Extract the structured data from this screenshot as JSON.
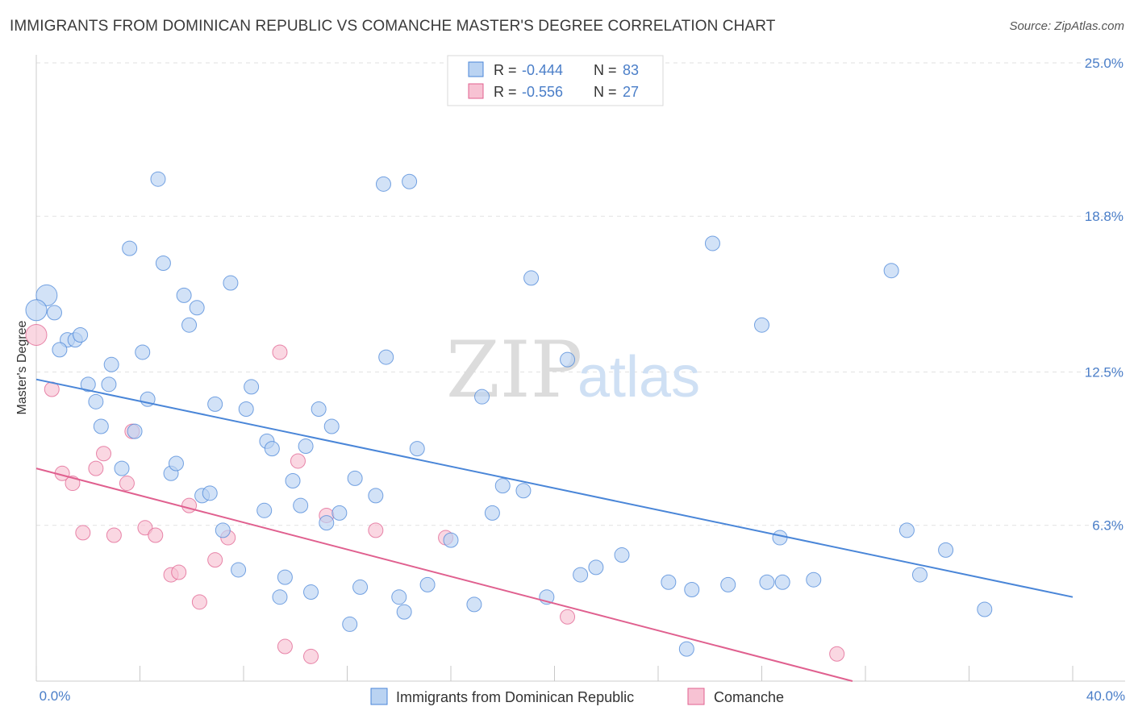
{
  "title": "IMMIGRANTS FROM DOMINICAN REPUBLIC VS COMANCHE MASTER'S DEGREE CORRELATION CHART",
  "source": "Source: ZipAtlas.com",
  "watermark": {
    "part1": "ZIP",
    "part2": "atlas"
  },
  "colors": {
    "blue": "#4a86d8",
    "blue_fill": "#bad3f2",
    "pink": "#e0608f",
    "pink_fill": "#f7c2d3",
    "tick_text": "#4a7ec8"
  },
  "legend_box": {
    "rows": [
      {
        "r_label": "R = ",
        "r_value": "-0.444",
        "n_label": "N = ",
        "n_value": "83"
      },
      {
        "r_label": "R = ",
        "r_value": "-0.556",
        "n_label": "N = ",
        "n_value": "27"
      }
    ]
  },
  "chart_data": {
    "type": "scatter",
    "title": "IMMIGRANTS FROM DOMINICAN REPUBLIC VS COMANCHE MASTER'S DEGREE CORRELATION CHART",
    "xlabel": "",
    "ylabel": "Master's Degree",
    "xlim": [
      0,
      40
    ],
    "ylim": [
      0,
      25
    ],
    "x_tick_labels": [
      "0.0%",
      "40.0%"
    ],
    "y_ticks": [
      6.3,
      12.5,
      18.8,
      25.0
    ],
    "y_tick_labels": [
      "6.3%",
      "12.5%",
      "18.8%",
      "25.0%"
    ],
    "grid": "horizontal dashed",
    "legend_position": "bottom",
    "series": [
      {
        "name": "Immigrants from Dominican Republic",
        "color": "#4a86d8",
        "r": -0.444,
        "n": 83,
        "trend": {
          "x": [
            0,
            40
          ],
          "y": [
            12.2,
            3.4
          ]
        },
        "points": [
          [
            0.4,
            15.6
          ],
          [
            0.7,
            14.9
          ],
          [
            0.0,
            15.0
          ],
          [
            1.2,
            13.8
          ],
          [
            1.5,
            13.8
          ],
          [
            0.9,
            13.4
          ],
          [
            1.7,
            14.0
          ],
          [
            2.0,
            12.0
          ],
          [
            2.3,
            11.3
          ],
          [
            2.9,
            12.8
          ],
          [
            2.8,
            12.0
          ],
          [
            2.5,
            10.3
          ],
          [
            3.6,
            17.5
          ],
          [
            4.1,
            13.3
          ],
          [
            3.8,
            10.1
          ],
          [
            4.3,
            11.4
          ],
          [
            4.7,
            20.3
          ],
          [
            4.9,
            16.9
          ],
          [
            5.7,
            15.6
          ],
          [
            5.9,
            14.4
          ],
          [
            6.2,
            15.1
          ],
          [
            3.3,
            8.6
          ],
          [
            5.2,
            8.4
          ],
          [
            5.4,
            8.8
          ],
          [
            6.4,
            7.5
          ],
          [
            6.7,
            7.6
          ],
          [
            6.9,
            11.2
          ],
          [
            7.5,
            16.1
          ],
          [
            7.2,
            6.1
          ],
          [
            7.8,
            4.5
          ],
          [
            8.1,
            11.0
          ],
          [
            8.3,
            11.9
          ],
          [
            8.8,
            6.9
          ],
          [
            8.9,
            9.7
          ],
          [
            9.1,
            9.4
          ],
          [
            9.4,
            3.4
          ],
          [
            9.6,
            4.2
          ],
          [
            9.9,
            8.1
          ],
          [
            10.2,
            7.1
          ],
          [
            10.4,
            9.5
          ],
          [
            10.6,
            3.6
          ],
          [
            10.9,
            11.0
          ],
          [
            11.4,
            10.3
          ],
          [
            11.2,
            6.4
          ],
          [
            11.7,
            6.8
          ],
          [
            12.1,
            2.3
          ],
          [
            12.3,
            8.2
          ],
          [
            12.5,
            3.8
          ],
          [
            13.1,
            7.5
          ],
          [
            13.4,
            20.1
          ],
          [
            13.5,
            13.1
          ],
          [
            14.4,
            20.2
          ],
          [
            14.0,
            3.4
          ],
          [
            14.2,
            2.8
          ],
          [
            14.7,
            9.4
          ],
          [
            15.1,
            3.9
          ],
          [
            16.0,
            5.7
          ],
          [
            16.9,
            3.1
          ],
          [
            17.2,
            11.5
          ],
          [
            17.6,
            6.8
          ],
          [
            18.0,
            7.9
          ],
          [
            18.8,
            7.7
          ],
          [
            19.1,
            16.3
          ],
          [
            19.7,
            3.4
          ],
          [
            20.5,
            13.0
          ],
          [
            21.0,
            4.3
          ],
          [
            21.6,
            4.6
          ],
          [
            22.6,
            5.1
          ],
          [
            24.4,
            4.0
          ],
          [
            25.1,
            1.3
          ],
          [
            25.3,
            3.7
          ],
          [
            26.1,
            17.7
          ],
          [
            26.7,
            3.9
          ],
          [
            28.0,
            14.4
          ],
          [
            28.2,
            4.0
          ],
          [
            28.7,
            5.8
          ],
          [
            28.8,
            4.0
          ],
          [
            30.0,
            4.1
          ],
          [
            33.0,
            16.6
          ],
          [
            33.6,
            6.1
          ],
          [
            34.1,
            4.3
          ],
          [
            35.1,
            5.3
          ],
          [
            36.6,
            2.9
          ]
        ]
      },
      {
        "name": "Comanche",
        "color": "#e0608f",
        "r": -0.556,
        "n": 27,
        "trend": {
          "x": [
            0,
            31.5
          ],
          "y": [
            8.6,
            0.0
          ]
        },
        "points": [
          [
            0.0,
            14.0
          ],
          [
            0.6,
            11.8
          ],
          [
            1.0,
            8.4
          ],
          [
            1.4,
            8.0
          ],
          [
            1.8,
            6.0
          ],
          [
            2.3,
            8.6
          ],
          [
            2.6,
            9.2
          ],
          [
            3.0,
            5.9
          ],
          [
            3.5,
            8.0
          ],
          [
            3.7,
            10.1
          ],
          [
            4.2,
            6.2
          ],
          [
            4.6,
            5.9
          ],
          [
            5.2,
            4.3
          ],
          [
            5.5,
            4.4
          ],
          [
            5.9,
            7.1
          ],
          [
            6.3,
            3.2
          ],
          [
            6.9,
            4.9
          ],
          [
            7.4,
            5.8
          ],
          [
            9.4,
            13.3
          ],
          [
            9.6,
            1.4
          ],
          [
            10.1,
            8.9
          ],
          [
            10.6,
            1.0
          ],
          [
            11.2,
            6.7
          ],
          [
            13.1,
            6.1
          ],
          [
            15.8,
            5.8
          ],
          [
            20.5,
            2.6
          ],
          [
            30.9,
            1.1
          ]
        ]
      }
    ]
  }
}
